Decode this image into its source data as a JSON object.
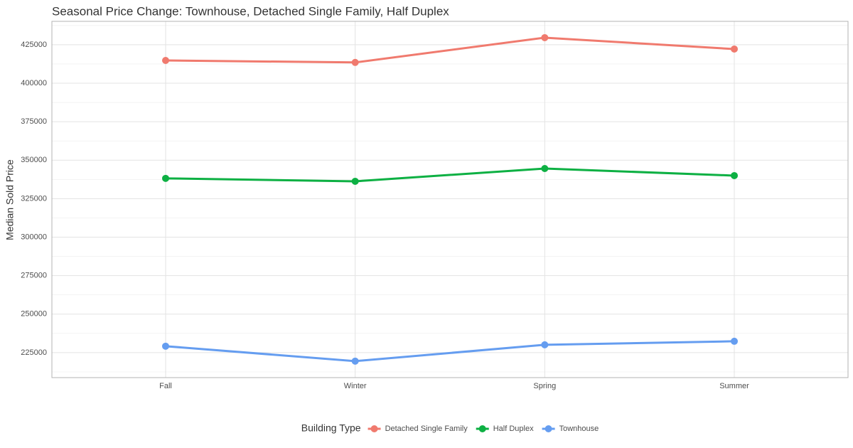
{
  "chart_data": {
    "type": "line",
    "title": "Seasonal  Price Change: Townhouse, Detached Single Family, Half Duplex",
    "y_label": "Median Sold Price",
    "legend_title": "Building Type",
    "legend_position": "bottom",
    "grid": true,
    "categories": [
      "Fall",
      "Winter",
      "Spring",
      "Summer"
    ],
    "series": [
      {
        "name": "Detached Single Family",
        "color": "#f07a6e",
        "values": [
          414800,
          413500,
          429600,
          422200
        ]
      },
      {
        "name": "Half Duplex",
        "color": "#0db043",
        "values": [
          338200,
          336300,
          344600,
          340000
        ]
      },
      {
        "name": "Townhouse",
        "color": "#659df0",
        "values": [
          229200,
          219500,
          230100,
          232400
        ]
      }
    ],
    "ylim": [
      208800,
      440200
    ],
    "yticks": [
      225000,
      250000,
      275000,
      300000,
      325000,
      350000,
      375000,
      400000,
      425000
    ]
  }
}
